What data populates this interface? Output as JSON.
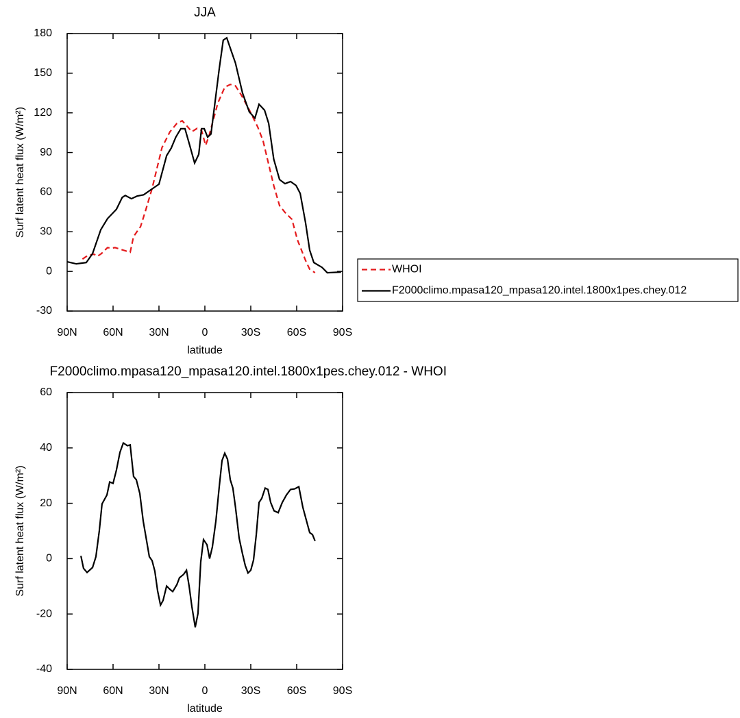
{
  "chart_data": [
    {
      "type": "line",
      "title": "JJA",
      "xlabel": "latitude",
      "ylabel": "Surf latent heat flux (W/m²)",
      "xlim": [
        90,
        -90
      ],
      "ylim": [
        -30,
        180
      ],
      "xticks": [
        {
          "value": 90,
          "label": "90N"
        },
        {
          "value": 60,
          "label": "60N"
        },
        {
          "value": 30,
          "label": "30N"
        },
        {
          "value": 0,
          "label": "0"
        },
        {
          "value": -30,
          "label": "30S"
        },
        {
          "value": -60,
          "label": "60S"
        },
        {
          "value": -90,
          "label": "90S"
        }
      ],
      "yticks": [
        -30,
        0,
        30,
        60,
        90,
        120,
        150,
        180
      ],
      "legend": "right",
      "series": [
        {
          "name": "WHOI",
          "color": "#e41a1c",
          "dash": true,
          "x": [
            80,
            76.6,
            72.5,
            70.3,
            67.6,
            63.6,
            61,
            58.7,
            48.8,
            46.6,
            42,
            38.5,
            34.5,
            28,
            22.8,
            18.3,
            14.8,
            12,
            8.5,
            5,
            2.2,
            -0.5,
            -2.7,
            -8.5,
            -13,
            -16.6,
            -20,
            -23.7,
            -29,
            -34.5,
            -38,
            -41.7,
            -45,
            -48.8,
            -52.4,
            -56.9,
            -60.5,
            -65.8,
            -68.5,
            -72
          ],
          "values": [
            9.3,
            12,
            13,
            11.4,
            13.5,
            18,
            17.6,
            18,
            14.5,
            26.4,
            34,
            47,
            62.7,
            93.8,
            105.7,
            112,
            114,
            110.4,
            105.7,
            108.3,
            106.8,
            95.4,
            102.6,
            127.5,
            139.4,
            141.5,
            140.4,
            133.7,
            122.3,
            109.4,
            99,
            81,
            65,
            49.8,
            44.6,
            39.4,
            23.8,
            8.3,
            1.6,
            -1
          ]
        },
        {
          "name": "F2000climo.mpasa120_mpasa120.intel.1800x1pes.chey.012",
          "color": "#000000",
          "dash": false,
          "x": [
            90,
            84,
            77.5,
            73.4,
            68,
            63.6,
            57.8,
            54,
            52,
            48,
            44.3,
            40,
            35.4,
            30,
            25,
            22,
            19,
            15.7,
            13,
            9.8,
            6.7,
            4,
            2.2,
            0.4,
            -1.8,
            -4,
            -6.7,
            -9.4,
            -12,
            -14.3,
            -16.6,
            -20,
            -24.6,
            -29,
            -32.7,
            -35.4,
            -39,
            -41.7,
            -45,
            -48.8,
            -52.4,
            -56,
            -59.6,
            -62.3,
            -65.8,
            -68.5,
            -71.2,
            -76.6,
            -80,
            -89
          ],
          "values": [
            7.3,
            5.7,
            6.7,
            13.5,
            31.6,
            40,
            47,
            56,
            57.5,
            55,
            57,
            58,
            61.7,
            66,
            87.6,
            93.3,
            101.6,
            108,
            108,
            95,
            82,
            88.6,
            108,
            108,
            101.6,
            104,
            128.6,
            153.5,
            175,
            176.8,
            169,
            157.6,
            135,
            120.8,
            116,
            126.5,
            122,
            112,
            85,
            69.5,
            66.4,
            68,
            65,
            59,
            36.8,
            16,
            6.7,
            3,
            -1,
            -0.5
          ]
        }
      ]
    },
    {
      "type": "line",
      "title": "F2000climo.mpasa120_mpasa120.intel.1800x1pes.chey.012 - WHOI",
      "xlabel": "latitude",
      "ylabel": "Surf latent heat flux (W/m²)",
      "xlim": [
        90,
        -90
      ],
      "ylim": [
        -40,
        60
      ],
      "xticks": [
        {
          "value": 90,
          "label": "90N"
        },
        {
          "value": 60,
          "label": "60N"
        },
        {
          "value": 30,
          "label": "30N"
        },
        {
          "value": 0,
          "label": "0"
        },
        {
          "value": -30,
          "label": "30S"
        },
        {
          "value": -60,
          "label": "60S"
        },
        {
          "value": -90,
          "label": "90S"
        }
      ],
      "yticks": [
        -40,
        -20,
        0,
        20,
        40,
        60
      ],
      "series": [
        {
          "color": "#000000",
          "dash": false,
          "x": [
            81,
            79.3,
            77,
            73.4,
            71.2,
            69,
            67.2,
            64,
            62.2,
            60,
            57.8,
            55.5,
            53.3,
            50.6,
            48.8,
            46.6,
            44.8,
            42.5,
            40.3,
            38,
            36.3,
            34.5,
            32.7,
            30.9,
            29,
            27.3,
            25,
            22.8,
            21,
            18.3,
            16.6,
            13.9,
            12,
            10.3,
            8.5,
            6.3,
            4.5,
            2.7,
            0.9,
            -1.4,
            -3.1,
            -4.9,
            -7.2,
            -9.4,
            -11.2,
            -13,
            -14.8,
            -16.6,
            -18.3,
            -20,
            -22.4,
            -24.6,
            -26.4,
            -28.2,
            -30,
            -31.8,
            -33.6,
            -35.4,
            -37.2,
            -39.4,
            -41.2,
            -43,
            -45.2,
            -47.9,
            -50.6,
            -53.3,
            -56,
            -58.7,
            -61.4,
            -64,
            -65.8,
            -68.5,
            -70.3,
            -72
          ],
          "values": [
            1,
            -3.5,
            -5,
            -3.2,
            0.7,
            10,
            19.8,
            23,
            27.7,
            27.2,
            32,
            38.4,
            41.8,
            40.8,
            41.1,
            29.7,
            28.5,
            23.5,
            13.6,
            6.2,
            0.7,
            -0.7,
            -4.5,
            -11.6,
            -16.8,
            -15.1,
            -9.9,
            -11.1,
            -11.9,
            -9.4,
            -6.9,
            -5.7,
            -4.2,
            -9.9,
            -17.3,
            -24.8,
            -19.8,
            -1.2,
            6.9,
            5,
            0,
            4.2,
            13.6,
            26,
            35.4,
            38.1,
            35.9,
            28.5,
            25.5,
            18.6,
            7.4,
            1.7,
            -2.5,
            -5.2,
            -4.2,
            -0.5,
            8.7,
            20.3,
            21.8,
            25.5,
            25,
            20.3,
            17.3,
            16.6,
            20.3,
            23,
            25,
            25.2,
            26,
            18.6,
            14.9,
            9.4,
            8.7,
            6.4
          ]
        }
      ]
    }
  ]
}
